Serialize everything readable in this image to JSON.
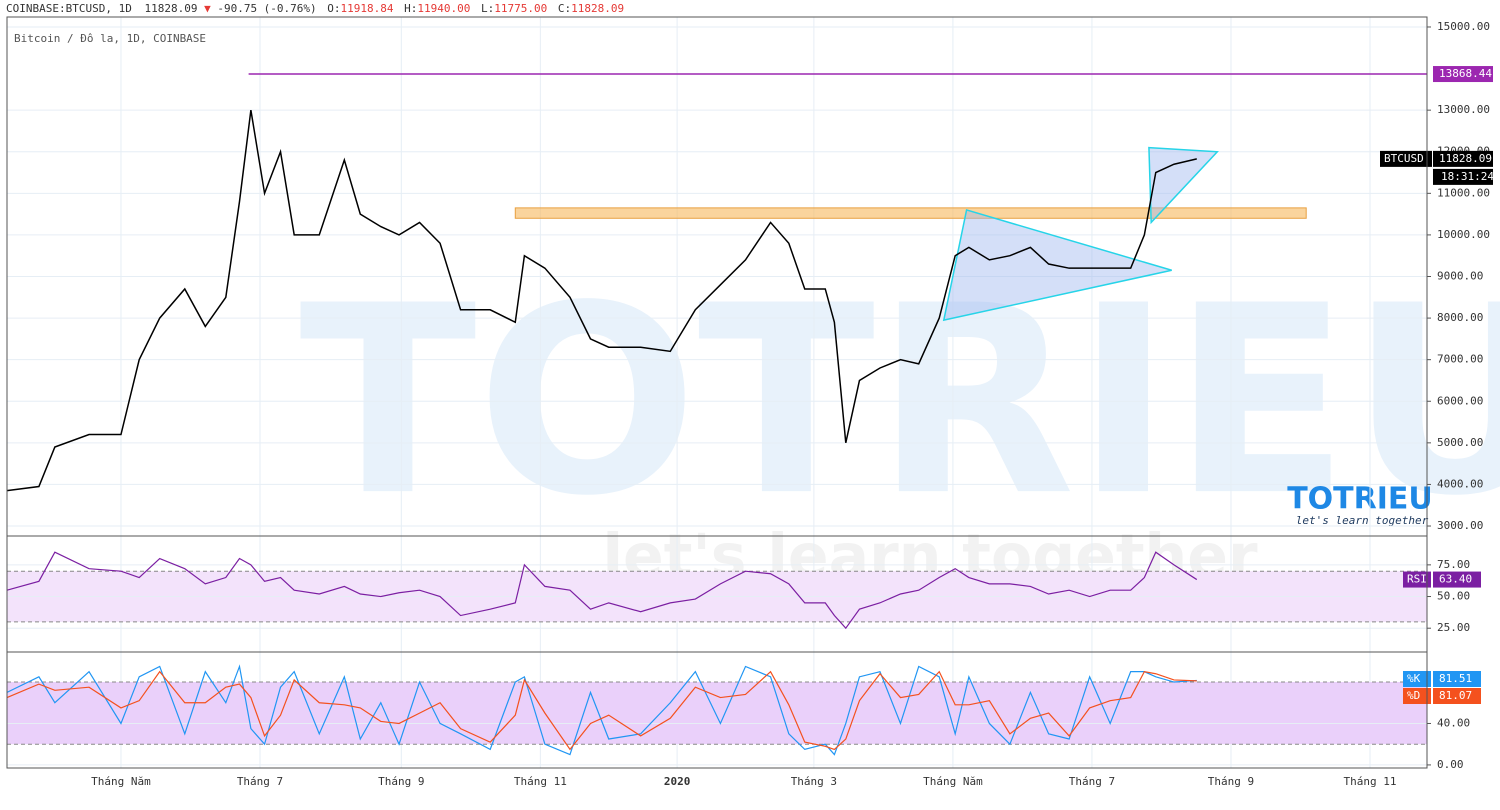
{
  "header": {
    "symbol": "COINBASE:BTCUSD, 1D",
    "price": "11828.09",
    "arrow": "▼",
    "change": "-90.75 (-0.76%)",
    "o_label": "O:",
    "o": "11918.84",
    "h_label": "H:",
    "h": "11940.00",
    "l_label": "L:",
    "l": "11775.00",
    "c_label": "C:",
    "c": "11828.09"
  },
  "watermark": {
    "brand": "TOTRIEU",
    "tagline": "let's learn together"
  },
  "chart_data": [
    {
      "type": "line",
      "subtitle": "Bitcoin / Đô la, 1D, COINBASE",
      "x": [
        0,
        14,
        21,
        36,
        50,
        58,
        67,
        78,
        87,
        96,
        102,
        107,
        113,
        120,
        126,
        137,
        148,
        155,
        164,
        172,
        181,
        190,
        199,
        212,
        223,
        227,
        236,
        247,
        256,
        264,
        278,
        291,
        302,
        313,
        324,
        335,
        343,
        350,
        359,
        363,
        368,
        374,
        383,
        392,
        400,
        409,
        416,
        422,
        431,
        440,
        449,
        457,
        466,
        475,
        484,
        493,
        499,
        504,
        512,
        522
      ],
      "series": [
        {
          "name": "BTCUSD",
          "color": "#000000",
          "values": [
            3850,
            3950,
            4900,
            5200,
            5200,
            7000,
            8000,
            8700,
            7800,
            8500,
            10800,
            13000,
            11000,
            12000,
            10000,
            10000,
            11800,
            10500,
            10200,
            10000,
            10300,
            9800,
            8200,
            8200,
            7900,
            9500,
            9200,
            8500,
            7500,
            7300,
            7300,
            7200,
            8200,
            8800,
            9400,
            10300,
            9800,
            8700,
            8700,
            7900,
            5000,
            6500,
            6800,
            7000,
            6900,
            8000,
            9500,
            9700,
            9400,
            9500,
            9700,
            9300,
            9200,
            9200,
            9200,
            9200,
            10000,
            11500,
            11700,
            11828.09
          ]
        }
      ],
      "last": {
        "name": "BTCUSD",
        "value": 11828.09,
        "countdown": "18:31:24"
      },
      "level": {
        "value": 13868.44,
        "start": 106,
        "color": "#9c27b0"
      },
      "zone": {
        "low": 10400,
        "high": 10650,
        "start": 223,
        "end": 570,
        "color": "#f7b85c"
      },
      "triangles": [
        {
          "x": [
            411,
            421,
            511
          ],
          "y": [
            7950,
            10600,
            9150
          ]
        },
        {
          "x": [
            501,
            531,
            502
          ],
          "y": [
            12100,
            12000,
            10300
          ]
        }
      ],
      "xlim": [
        0,
        623
      ],
      "xticks": [
        {
          "value": 50,
          "label": "Tháng Năm"
        },
        {
          "value": 111,
          "label": "Tháng 7"
        },
        {
          "value": 173,
          "label": "Tháng 9"
        },
        {
          "value": 234,
          "label": "Tháng 11"
        },
        {
          "value": 294,
          "label": "2020"
        },
        {
          "value": 354,
          "label": "Tháng 3"
        },
        {
          "value": 415,
          "label": "Tháng Năm"
        },
        {
          "value": 476,
          "label": "Tháng 7"
        },
        {
          "value": 537,
          "label": "Tháng 9"
        },
        {
          "value": 598,
          "label": "Tháng 11"
        }
      ],
      "ylim": [
        2784,
        15240
      ],
      "yticks": [
        {
          "value": 3000,
          "label": "3000.00"
        },
        {
          "value": 4000,
          "label": "4000.00"
        },
        {
          "value": 5000,
          "label": "5000.00"
        },
        {
          "value": 6000,
          "label": "6000.00"
        },
        {
          "value": 7000,
          "label": "7000.00"
        },
        {
          "value": 8000,
          "label": "8000.00"
        },
        {
          "value": 9000,
          "label": "9000.00"
        },
        {
          "value": 10000,
          "label": "10000.00"
        },
        {
          "value": 11000,
          "label": "11000.00"
        },
        {
          "value": 12000,
          "label": "12000.00"
        },
        {
          "value": 13000,
          "label": "13000.00"
        },
        {
          "value": 15000,
          "label": "15000.00"
        }
      ],
      "grid": true
    },
    {
      "type": "line",
      "x": [
        0,
        14,
        21,
        36,
        50,
        58,
        67,
        78,
        87,
        96,
        102,
        107,
        113,
        120,
        126,
        137,
        148,
        155,
        164,
        172,
        181,
        190,
        199,
        212,
        223,
        227,
        236,
        247,
        256,
        264,
        278,
        291,
        302,
        313,
        324,
        335,
        343,
        350,
        359,
        363,
        368,
        374,
        383,
        392,
        400,
        409,
        416,
        422,
        431,
        440,
        449,
        457,
        466,
        475,
        484,
        493,
        499,
        504,
        512,
        522
      ],
      "series": [
        {
          "name": "RSI",
          "color": "#7b1fa2",
          "values": [
            55,
            62,
            85,
            72,
            70,
            65,
            80,
            72,
            60,
            65,
            80,
            75,
            62,
            65,
            55,
            52,
            58,
            52,
            50,
            53,
            55,
            50,
            35,
            40,
            45,
            75,
            58,
            55,
            40,
            45,
            38,
            45,
            48,
            60,
            70,
            68,
            60,
            45,
            45,
            35,
            25,
            40,
            45,
            52,
            55,
            65,
            72,
            65,
            60,
            60,
            58,
            52,
            55,
            50,
            55,
            55,
            65,
            85,
            75,
            63.4
          ]
        }
      ],
      "last_values": [
        {
          "value": 63.4,
          "label": "63.40"
        }
      ],
      "band": [
        30,
        70
      ],
      "band_color": "#f3e3fb",
      "xlim": [
        0,
        623
      ],
      "ylim": [
        7,
        97
      ],
      "yticks": [
        {
          "value": 25,
          "label": "25.00"
        },
        {
          "value": 50,
          "label": "50.00"
        },
        {
          "value": 75,
          "label": "75.00"
        }
      ],
      "grid": true
    },
    {
      "type": "line",
      "x": [
        0,
        14,
        21,
        36,
        50,
        58,
        67,
        78,
        87,
        96,
        102,
        107,
        113,
        120,
        126,
        137,
        148,
        155,
        164,
        172,
        181,
        190,
        199,
        212,
        223,
        227,
        236,
        247,
        256,
        264,
        278,
        291,
        302,
        313,
        324,
        335,
        343,
        350,
        359,
        363,
        368,
        374,
        383,
        392,
        400,
        409,
        416,
        422,
        431,
        440,
        449,
        457,
        466,
        475,
        484,
        493,
        499,
        504,
        512,
        522
      ],
      "series": [
        {
          "name": "%K",
          "color": "#2196f3",
          "values": [
            70,
            85,
            60,
            90,
            40,
            85,
            95,
            30,
            90,
            60,
            95,
            35,
            20,
            75,
            90,
            30,
            85,
            25,
            60,
            20,
            80,
            40,
            30,
            15,
            80,
            85,
            20,
            10,
            70,
            25,
            30,
            60,
            90,
            40,
            95,
            85,
            30,
            15,
            20,
            10,
            40,
            85,
            90,
            40,
            95,
            85,
            30,
            85,
            40,
            20,
            70,
            30,
            25,
            85,
            40,
            90,
            90,
            85,
            80,
            81.51
          ]
        },
        {
          "name": "%D",
          "color": "#f4511e",
          "values": [
            65,
            78,
            72,
            75,
            55,
            62,
            90,
            60,
            60,
            75,
            78,
            65,
            28,
            48,
            82,
            60,
            58,
            55,
            42,
            40,
            50,
            60,
            35,
            22,
            48,
            82,
            50,
            15,
            40,
            48,
            28,
            45,
            75,
            65,
            68,
            90,
            58,
            22,
            18,
            15,
            25,
            62,
            88,
            65,
            68,
            90,
            58,
            58,
            62,
            30,
            45,
            50,
            28,
            55,
            62,
            65,
            90,
            88,
            82,
            81.07
          ]
        }
      ],
      "last_values": [
        81.51,
        81.07
      ],
      "band": [
        20,
        80
      ],
      "band_color": "#ead0fa",
      "xlim": [
        0,
        623
      ],
      "ylim": [
        -2,
        108
      ],
      "yticks": [
        {
          "value": 0,
          "label": "0.00"
        },
        {
          "value": 40,
          "label": "40.00"
        }
      ],
      "grid": true
    }
  ]
}
